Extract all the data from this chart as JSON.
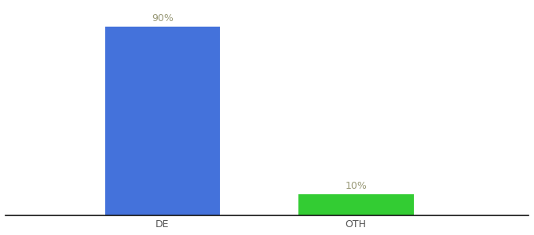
{
  "categories": [
    "DE",
    "OTH"
  ],
  "values": [
    90,
    10
  ],
  "bar_colors": [
    "#4472db",
    "#33cc33"
  ],
  "bar_labels": [
    "90%",
    "10%"
  ],
  "background_color": "#ffffff",
  "ylim": [
    0,
    100
  ],
  "label_fontsize": 9,
  "tick_fontsize": 9,
  "label_color": "#999977",
  "bar_positions": [
    0.3,
    0.67
  ],
  "bar_width": 0.22,
  "xlim": [
    0.0,
    1.0
  ]
}
